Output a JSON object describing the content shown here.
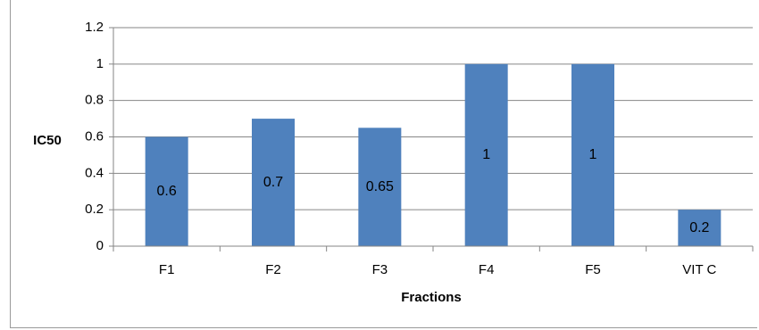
{
  "chart_data": {
    "type": "bar",
    "categories": [
      "F1",
      "F2",
      "F3",
      "F4",
      "F5",
      "VIT C"
    ],
    "values": [
      0.6,
      0.7,
      0.65,
      1,
      1,
      0.2
    ],
    "data_labels": [
      "0.6",
      "0.7",
      "0.65",
      "1",
      "1",
      "0.2"
    ],
    "title": "",
    "xlabel": "Fractions",
    "ylabel": "IC50",
    "ylim": [
      0,
      1.2
    ],
    "yticks": [
      0,
      0.2,
      0.4,
      0.6,
      0.8,
      1,
      1.2
    ],
    "ytick_labels": [
      "0",
      "0.2",
      "0.4",
      "0.6",
      "0.8",
      "1",
      "1.2"
    ],
    "grid": true,
    "legend": "none",
    "bar_color": "#4f81bd",
    "gridline_color": "#868686"
  }
}
